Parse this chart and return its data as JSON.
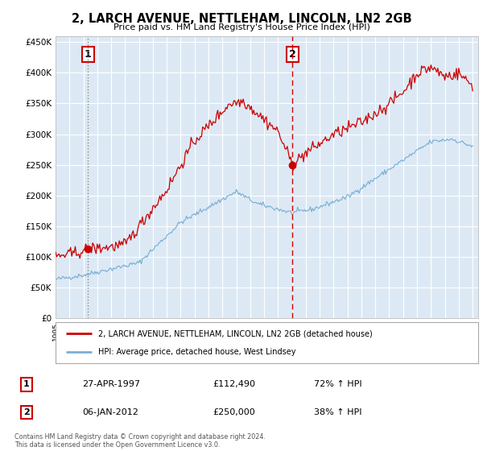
{
  "title": "2, LARCH AVENUE, NETTLEHAM, LINCOLN, LN2 2GB",
  "subtitle": "Price paid vs. HM Land Registry's House Price Index (HPI)",
  "bg_color": "#dce9f5",
  "grid_color": "#ffffff",
  "red_line_color": "#cc0000",
  "blue_line_color": "#7bafd4",
  "sale1_date": 1997.32,
  "sale1_price": 112490,
  "sale1_label": "1",
  "sale2_date": 2012.04,
  "sale2_price": 250000,
  "sale2_label": "2",
  "ylim": [
    0,
    460000
  ],
  "xlim": [
    1995.0,
    2025.4
  ],
  "legend_line1": "2, LARCH AVENUE, NETTLEHAM, LINCOLN, LN2 2GB (detached house)",
  "legend_line2": "HPI: Average price, detached house, West Lindsey",
  "table_row1": [
    "1",
    "27-APR-1997",
    "£112,490",
    "72% ↑ HPI"
  ],
  "table_row2": [
    "2",
    "06-JAN-2012",
    "£250,000",
    "38% ↑ HPI"
  ],
  "footnote": "Contains HM Land Registry data © Crown copyright and database right 2024.\nThis data is licensed under the Open Government Licence v3.0."
}
